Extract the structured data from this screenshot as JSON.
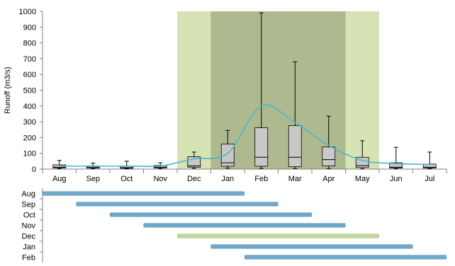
{
  "chart_data": [
    {
      "type": "boxplot",
      "title": "",
      "xlabel": "",
      "ylabel": "Runoff (m3/s)",
      "ylim": [
        0,
        1000
      ],
      "yticks": [
        0,
        100,
        200,
        300,
        400,
        500,
        600,
        700,
        800,
        900,
        1000
      ],
      "categories": [
        "Aug",
        "Sep",
        "Oct",
        "Nov",
        "Dec",
        "Jan",
        "Feb",
        "Mar",
        "Apr",
        "May",
        "Jun",
        "Jul"
      ],
      "grid": false,
      "box_color": "#c8c8c8",
      "boxes": [
        {
          "min": 2,
          "q1": 7,
          "median": 12,
          "q3": 27,
          "max": 55
        },
        {
          "min": 2,
          "q1": 6,
          "median": 10,
          "q3": 20,
          "max": 38
        },
        {
          "min": 2,
          "q1": 5,
          "median": 9,
          "q3": 18,
          "max": 50
        },
        {
          "min": 2,
          "q1": 7,
          "median": 12,
          "q3": 23,
          "max": 40
        },
        {
          "min": 4,
          "q1": 12,
          "median": 20,
          "q3": 78,
          "max": 108
        },
        {
          "min": 5,
          "q1": 18,
          "median": 40,
          "q3": 158,
          "max": 245
        },
        {
          "min": 4,
          "q1": 18,
          "median": 75,
          "q3": 262,
          "max": 990
        },
        {
          "min": 3,
          "q1": 15,
          "median": 75,
          "q3": 275,
          "max": 680
        },
        {
          "min": 3,
          "q1": 20,
          "median": 60,
          "q3": 140,
          "max": 335
        },
        {
          "min": 2,
          "q1": 10,
          "median": 22,
          "q3": 75,
          "max": 180
        },
        {
          "min": 2,
          "q1": 6,
          "median": 12,
          "q3": 40,
          "max": 138
        },
        {
          "min": 2,
          "q1": 6,
          "median": 12,
          "q3": 32,
          "max": 108
        }
      ],
      "mean_line": {
        "color": "#4bb8c9",
        "values": [
          20,
          18,
          19,
          20,
          65,
          100,
          400,
          295,
          150,
          55,
          35,
          30
        ]
      },
      "shaded_periods": [
        {
          "from": "Dec",
          "to": "May",
          "color": "#d6e3b4"
        },
        {
          "from": "Jan",
          "to": "Apr",
          "color": "#afb98f"
        }
      ]
    },
    {
      "type": "gantt",
      "categories": [
        "Aug",
        "Sep",
        "Oct",
        "Nov",
        "Dec",
        "Jan",
        "Feb"
      ],
      "month_axis": [
        "Aug",
        "Sep",
        "Oct",
        "Nov",
        "Dec",
        "Jan",
        "Feb",
        "Mar",
        "Apr",
        "May",
        "Jun",
        "Jul"
      ],
      "bars": [
        {
          "label": "Aug",
          "start": "Aug",
          "end": "Jan",
          "color": "#6ea9c9"
        },
        {
          "label": "Sep",
          "start": "Sep",
          "end": "Feb",
          "color": "#6ea9c9"
        },
        {
          "label": "Oct",
          "start": "Oct",
          "end": "Mar",
          "color": "#6ea9c9"
        },
        {
          "label": "Nov",
          "start": "Nov",
          "end": "Apr",
          "color": "#6ea9c9"
        },
        {
          "label": "Dec",
          "start": "Dec",
          "end": "May",
          "color": "#c3d69b"
        },
        {
          "label": "Jan",
          "start": "Jan",
          "end": "Jun",
          "color": "#6ea9c9"
        },
        {
          "label": "Feb",
          "start": "Feb",
          "end": "Jul",
          "color": "#6ea9c9"
        }
      ]
    }
  ]
}
